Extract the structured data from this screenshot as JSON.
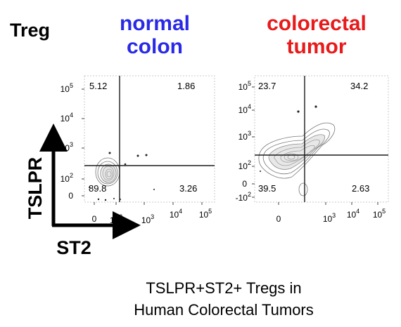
{
  "figure_label": "Treg",
  "caption": [
    "TSLPR+ST2+ Tregs in",
    "Human Colorectal Tumors"
  ],
  "axes": {
    "y_label": "TSLPR",
    "x_label": "ST2"
  },
  "colors": {
    "normal": "#2a2ae6",
    "tumor": "#e81a1a",
    "gate": "#1a1a1a",
    "contour": "#777777"
  },
  "chart_data": [
    {
      "type": "contour-flow-cytometry",
      "title": [
        "normal",
        "colon"
      ],
      "xlabel": "ST2",
      "ylabel": "TSLPR",
      "x_scale": "biexponential",
      "y_scale": "biexponential",
      "x_ticks": [
        "0",
        "10",
        "10",
        "10",
        "10"
      ],
      "x_tick_exponents": [
        "",
        "2",
        "3",
        "4",
        "5"
      ],
      "y_ticks": [
        "0",
        "10",
        "10",
        "10",
        "10"
      ],
      "y_tick_exponents": [
        "",
        "2",
        "3",
        "4",
        "5"
      ],
      "quadrants": {
        "upper_left": "5.12",
        "upper_right": "1.86",
        "lower_left": "89.8",
        "lower_right": "3.26"
      }
    },
    {
      "type": "contour-flow-cytometry",
      "title": [
        "colorectal",
        "tumor"
      ],
      "xlabel": "ST2",
      "ylabel": "TSLPR",
      "x_scale": "biexponential",
      "y_scale": "biexponential",
      "x_ticks": [
        "0",
        "10",
        "10",
        "10"
      ],
      "x_tick_exponents": [
        "",
        "3",
        "4",
        "5"
      ],
      "y_ticks": [
        "-10",
        "0",
        "10",
        "10",
        "10",
        "10"
      ],
      "y_tick_exponents": [
        "2",
        "",
        "2",
        "3",
        "4",
        "5"
      ],
      "quadrants": {
        "upper_left": "23.7",
        "upper_right": "34.2",
        "lower_left": "39.5",
        "lower_right": "2.63"
      }
    }
  ]
}
